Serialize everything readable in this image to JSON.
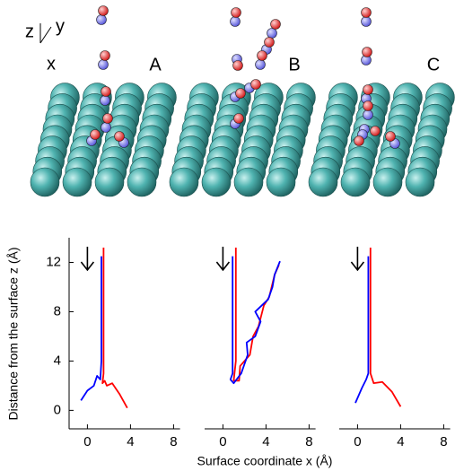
{
  "axes_icon": {
    "z": "z",
    "y": "y",
    "x": "x"
  },
  "ylabel": "Distance from the surface z (Å)",
  "xlabel": "Surface coordinate x (Å)",
  "chart_data": [
    {
      "type": "line",
      "panel": "A",
      "xlim": [
        -1.7,
        8.6
      ],
      "ylim": [
        -1.5,
        14
      ],
      "xticks": [
        0,
        4,
        8
      ],
      "yticks": [
        0,
        4,
        8,
        12
      ],
      "show_yaxis": true,
      "series": [
        {
          "color": "#ff0000",
          "x": [
            1.5,
            1.5,
            1.4,
            1.6,
            1.8,
            2.3,
            3.0,
            3.7
          ],
          "values": [
            13.2,
            3.0,
            2.2,
            2.4,
            2.0,
            2.2,
            1.3,
            0.2
          ]
        },
        {
          "color": "#0000ff",
          "x": [
            1.3,
            1.3,
            1.2,
            0.9,
            0.6,
            0.0,
            -0.6
          ],
          "values": [
            12.5,
            4.0,
            2.5,
            2.8,
            2.0,
            1.6,
            0.8
          ]
        }
      ]
    },
    {
      "type": "line",
      "panel": "B",
      "xlim": [
        -1.7,
        8.6
      ],
      "ylim": [
        -1.5,
        14
      ],
      "xticks": [
        0,
        4,
        8
      ],
      "yticks": [
        0,
        4,
        8,
        12
      ],
      "show_yaxis": false,
      "series": [
        {
          "color": "#ff0000",
          "x": [
            1.2,
            1.2,
            1.0,
            1.5,
            1.6,
            2.5,
            2.8,
            3.3,
            3.8,
            4.3,
            4.8,
            5.2
          ],
          "values": [
            13.2,
            4.0,
            2.4,
            2.4,
            3.6,
            4.5,
            6.0,
            6.8,
            8.5,
            9.2,
            11.0,
            11.8
          ]
        },
        {
          "color": "#0000ff",
          "x": [
            0.9,
            0.9,
            0.7,
            1.0,
            1.7,
            2.3,
            2.2,
            3.0,
            3.5,
            3.0,
            4.2,
            4.6,
            4.8,
            5.3
          ],
          "values": [
            12.5,
            3.0,
            2.5,
            2.2,
            3.0,
            4.5,
            5.5,
            6.0,
            7.2,
            8.0,
            9.0,
            10.0,
            11.0,
            12.1
          ]
        }
      ]
    },
    {
      "type": "line",
      "panel": "C",
      "xlim": [
        -1.7,
        8.6
      ],
      "ylim": [
        -1.5,
        14
      ],
      "xticks": [
        0,
        4,
        8
      ],
      "yticks": [
        0,
        4,
        8,
        12
      ],
      "show_yaxis": false,
      "series": [
        {
          "color": "#ff0000",
          "x": [
            1.2,
            1.2,
            1.5,
            2.3,
            3.2,
            4.0
          ],
          "values": [
            13.2,
            3.0,
            2.2,
            2.3,
            1.5,
            0.3
          ]
        },
        {
          "color": "#0000ff",
          "x": [
            1.0,
            1.0,
            0.8,
            0.4,
            -0.2
          ],
          "values": [
            12.5,
            3.0,
            2.5,
            1.8,
            0.6
          ]
        }
      ]
    }
  ]
}
